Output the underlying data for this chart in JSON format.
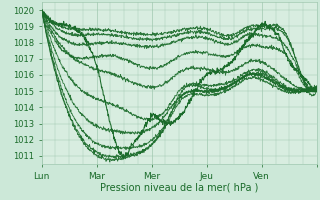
{
  "xlabel": "Pression niveau de la mer( hPa )",
  "ylim": [
    1010.5,
    1020.5
  ],
  "xlim": [
    0,
    120
  ],
  "yticks": [
    1011,
    1012,
    1013,
    1014,
    1015,
    1016,
    1017,
    1018,
    1019,
    1020
  ],
  "xtick_pos": [
    0,
    24,
    48,
    72,
    96,
    120
  ],
  "xtick_labels": [
    "Lun",
    "Mar",
    "Mer",
    "Jeu",
    "Ven",
    ""
  ],
  "bg_color": "#cce8d8",
  "plot_bg": "#d8ede0",
  "grid_color": "#a0c8b0",
  "line_color": "#1a6b2a",
  "tick_color": "#1a6b2a",
  "label_color": "#1a6b2a"
}
